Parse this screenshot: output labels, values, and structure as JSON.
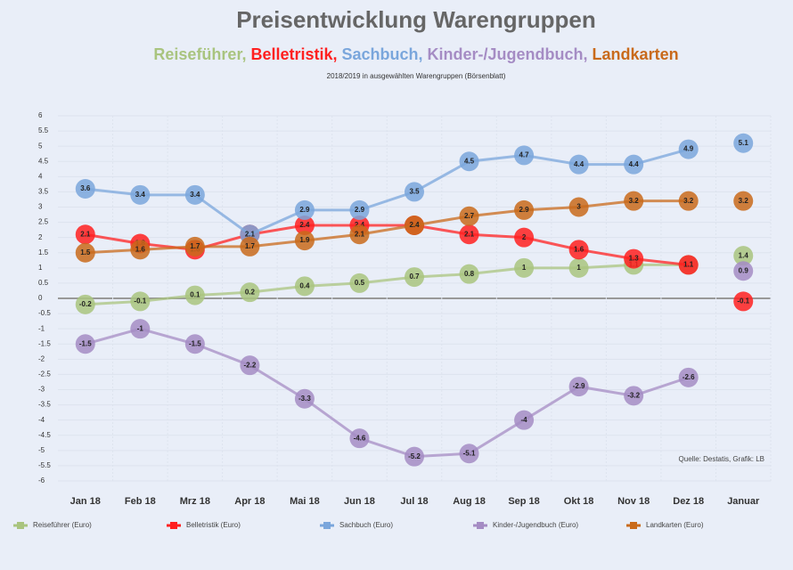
{
  "chart_data": {
    "type": "line",
    "title": "Preisentwicklung Warengruppen",
    "subtitle_parts": [
      "Reiseführer, ",
      "Belletristik, ",
      "Sachbuch, ",
      "Kinder-/Jugendbuch, ",
      "Landkarten"
    ],
    "note": "2018/2019 in ausgewählten Warengruppen (Börsenblatt)",
    "source": "Quelle: Destatis, Grafik: LB",
    "categories": [
      "Jan 18",
      "Feb 18",
      "Mrz 18",
      "Apr 18",
      "Mai 18",
      "Jun 18",
      "Jul 18",
      "Aug 18",
      "Sep 18",
      "Okt 18",
      "Nov 18",
      "Dez 18",
      "Januar"
    ],
    "ylim": [
      -6,
      6
    ],
    "yticks": [
      -6,
      -5.5,
      -5,
      -4.5,
      -4,
      -3.5,
      -3,
      -2.5,
      -2,
      -1.5,
      -1,
      -0.5,
      0,
      0.5,
      1,
      1.5,
      2,
      2.5,
      3,
      3.5,
      4,
      4.5,
      5,
      5.5,
      6
    ],
    "grid": true,
    "series": [
      {
        "name": "Reiseführer (Euro)",
        "color": "#a9c47f",
        "values": [
          -0.2,
          -0.1,
          0.1,
          0.2,
          0.4,
          0.5,
          0.7,
          0.8,
          1,
          1,
          1.1,
          1.1,
          null
        ],
        "next_value": 1.4
      },
      {
        "name": "Belletristik (Euro)",
        "color": "#ff2020",
        "values": [
          2.1,
          1.8,
          1.6,
          2.1,
          2.4,
          2.4,
          2.4,
          2.1,
          2,
          1.6,
          1.3,
          1.1,
          null
        ],
        "next_value": -0.1
      },
      {
        "name": "Sachbuch (Euro)",
        "color": "#7aa6dc",
        "values": [
          3.6,
          3.4,
          3.4,
          2.1,
          2.9,
          2.9,
          3.5,
          4.5,
          4.7,
          4.4,
          4.4,
          4.9,
          null
        ],
        "next_value": 5.1
      },
      {
        "name": "Kinder-/Jugendbuch (Euro)",
        "color": "#a58cc4",
        "values": [
          -1.5,
          -1,
          -1.5,
          -2.2,
          -3.3,
          -4.6,
          -5.2,
          -5.1,
          -4,
          -2.9,
          -3.2,
          -2.6,
          null
        ],
        "next_value": 0.9
      },
      {
        "name": "Landkarten (Euro)",
        "color": "#c96a1b",
        "values": [
          1.5,
          1.6,
          1.7,
          1.7,
          1.9,
          2.1,
          2.4,
          2.7,
          2.9,
          3,
          3.2,
          3.2,
          null
        ],
        "next_value": 3.2
      }
    ]
  }
}
